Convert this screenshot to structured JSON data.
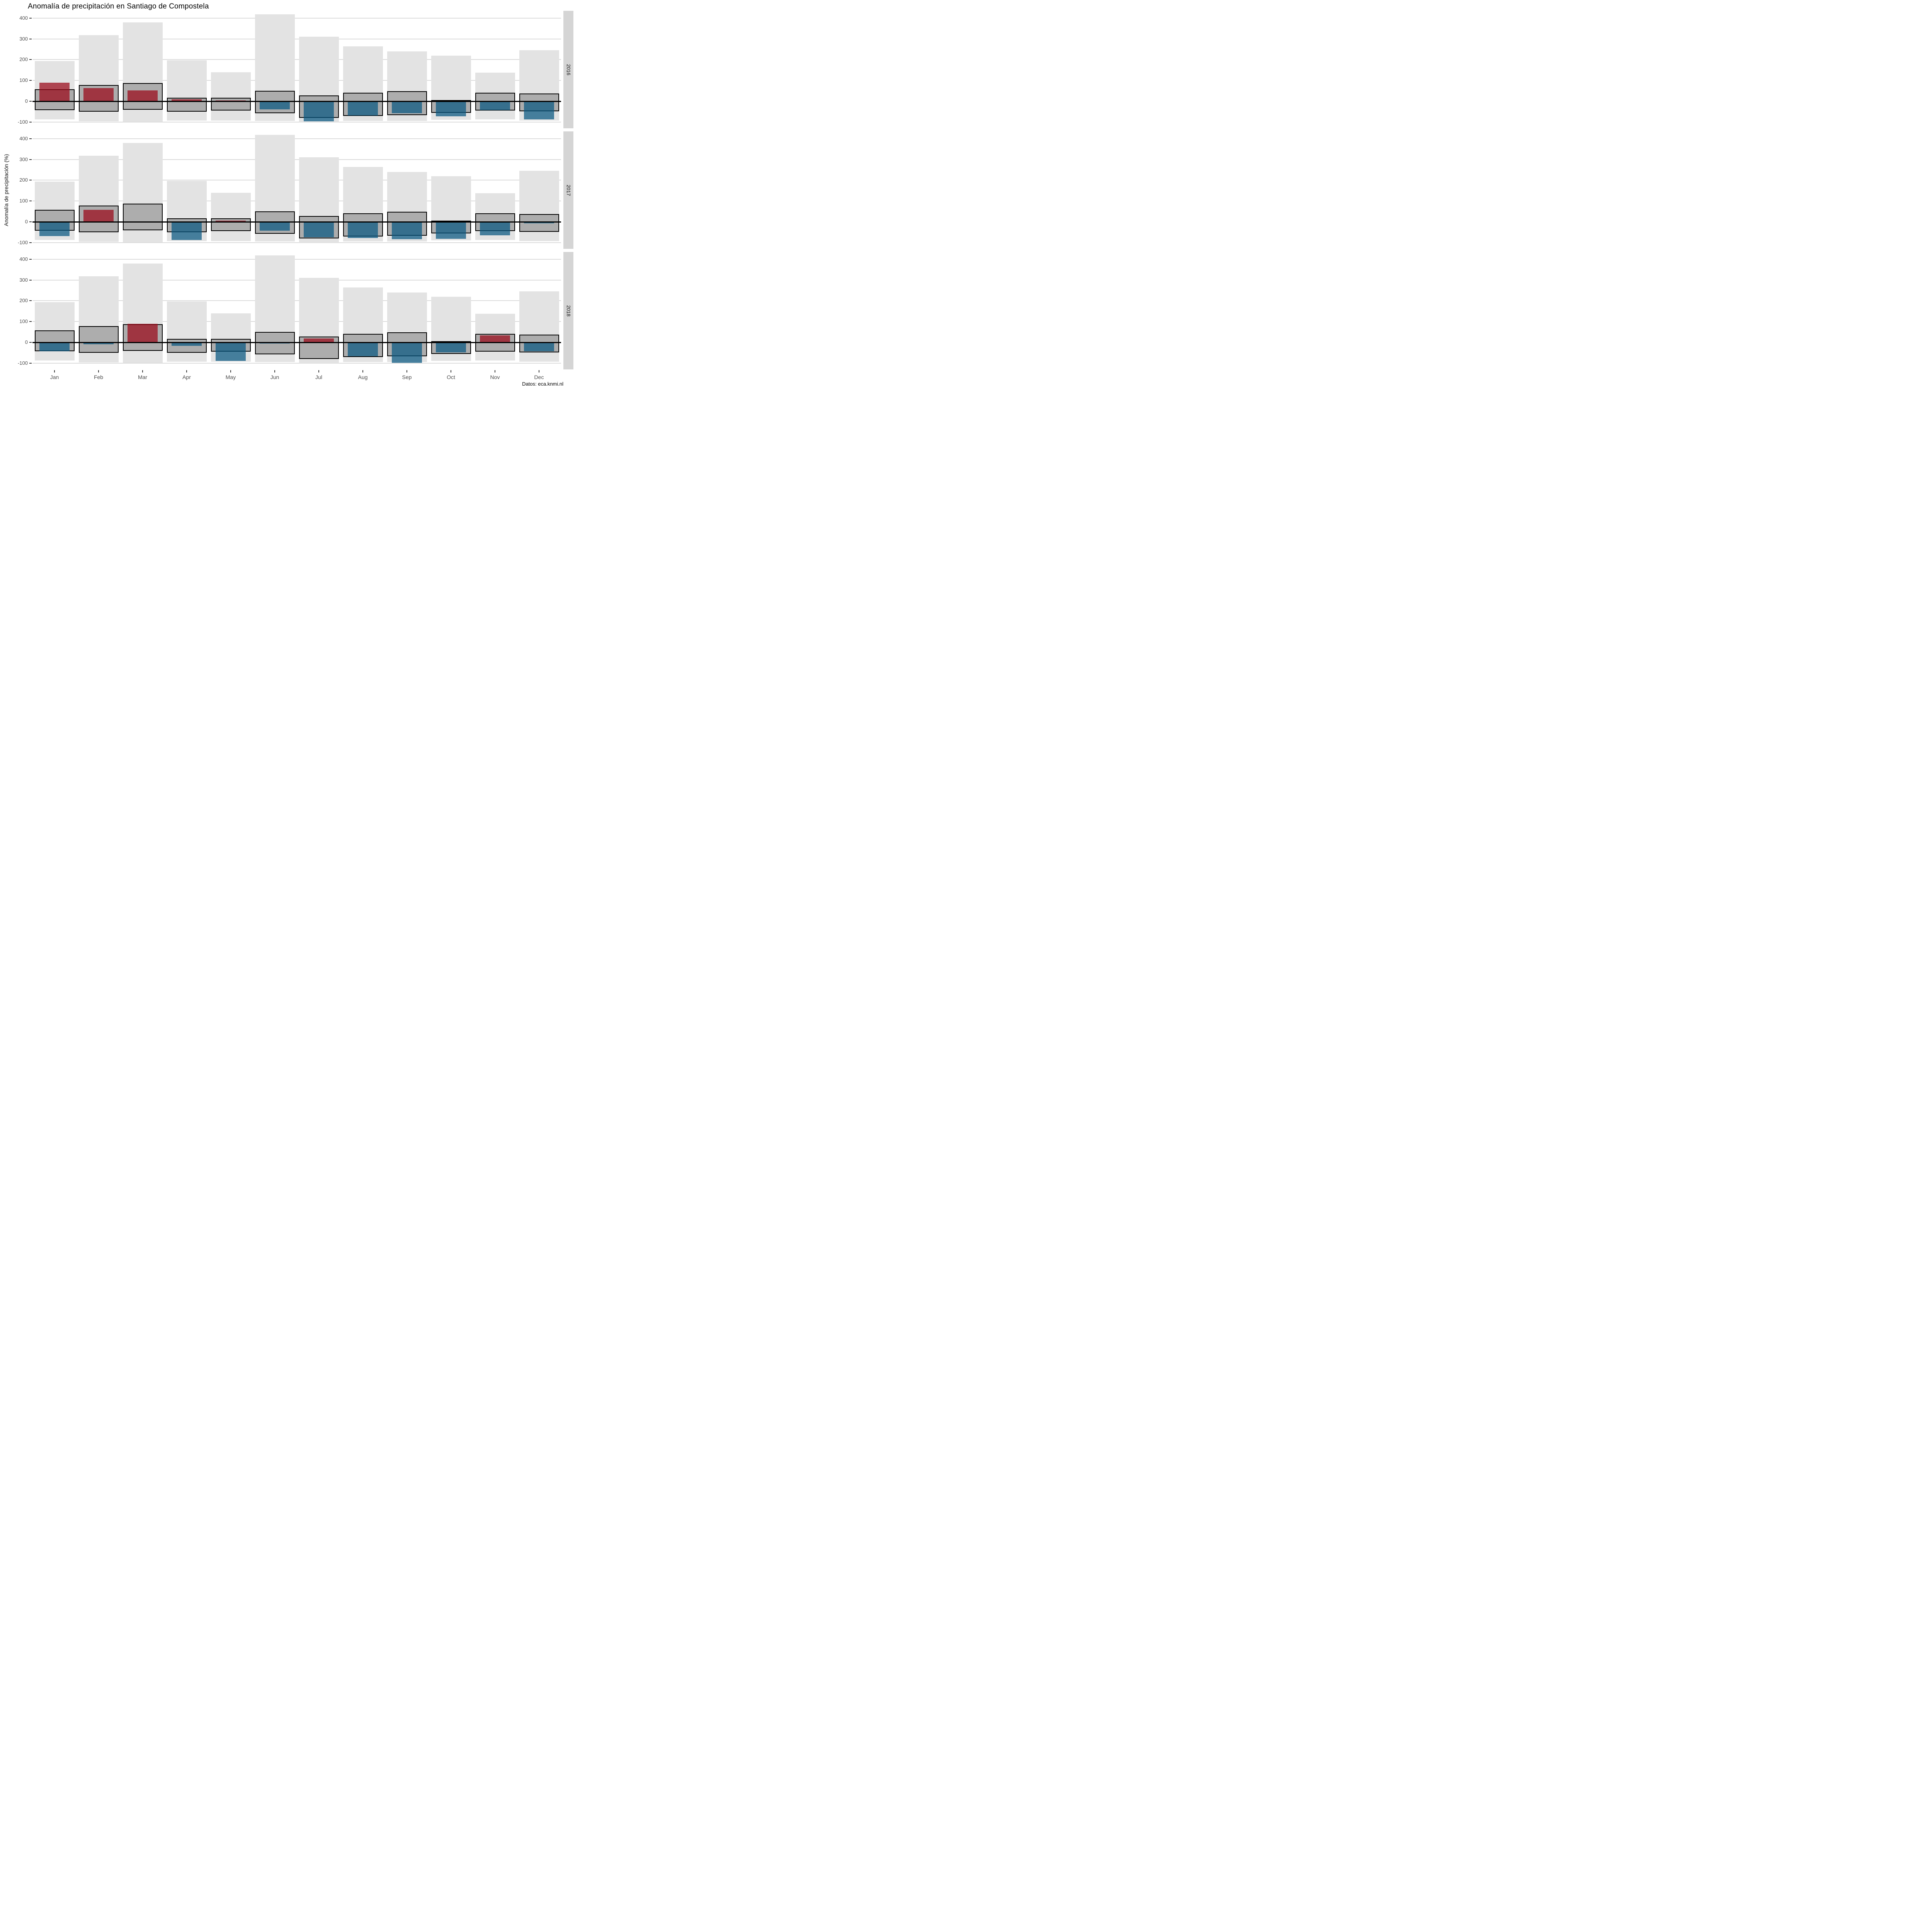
{
  "title": "Anomalía de precipitación en Santiago de Compostela",
  "y_axis": {
    "label": "Anomalía de precipitación (%)",
    "ticks": [
      400,
      300,
      200,
      100,
      0,
      -100
    ]
  },
  "source": "Datos: eca.knmi.nl",
  "facets": [
    "2016",
    "2017",
    "2018"
  ],
  "colors": {
    "record_range": "#e3e3e3",
    "typical_box_fill": "#adadad",
    "typical_box_border": "#000000",
    "positive_anomaly": "#9a0819",
    "negative_anomaly": "#095881",
    "bar_alpha": 0.73,
    "zero_line": "#000000",
    "gridline": "#dbdbdb",
    "strip_background": "#d5d5d5",
    "axis_text": "#4d4d4d"
  },
  "chart_data": {
    "type": "bar",
    "title": "Anomalía de precipitación en Santiago de Compostela",
    "ylabel": "Anomalía de precipitación (%)",
    "xlabel": "",
    "ylim": [
      -130,
      435
    ],
    "grid": "horizontal",
    "legend_position": "none",
    "categories": [
      "Jan",
      "Feb",
      "Mar",
      "Apr",
      "May",
      "Jun",
      "Jul",
      "Aug",
      "Sep",
      "Oct",
      "Nov",
      "Dec"
    ],
    "facet_years": [
      "2016",
      "2017",
      "2018"
    ],
    "record_range": {
      "top": [
        193,
        318,
        380,
        198,
        140,
        418,
        310,
        264,
        240,
        220,
        137,
        245
      ],
      "bottom": [
        -88,
        -97,
        -98,
        -92,
        -92,
        -95,
        -100,
        -95,
        -95,
        -90,
        -88,
        -92
      ]
    },
    "typical_range_box": {
      "top": [
        57,
        78,
        88,
        17,
        17,
        50,
        28,
        41,
        49,
        5,
        41,
        37
      ],
      "bottom": [
        -43,
        -51,
        -40,
        -50,
        -45,
        -58,
        -79,
        -70,
        -66,
        -55,
        -44,
        -49
      ]
    },
    "series": [
      {
        "name": "2016",
        "values": [
          90,
          63,
          53,
          9,
          3,
          -39,
          -96,
          -68,
          -58,
          -72,
          -43,
          -88
        ]
      },
      {
        "name": "2017",
        "values": [
          -68,
          57,
          0,
          -87,
          5,
          -42,
          -75,
          -78,
          -83,
          -81,
          -65,
          -8
        ]
      },
      {
        "name": "2018",
        "values": [
          -42,
          -10,
          89,
          -16,
          -90,
          -5,
          19,
          -66,
          -98,
          -49,
          34,
          -43
        ]
      }
    ]
  },
  "layout_note_values_are_percent": true
}
